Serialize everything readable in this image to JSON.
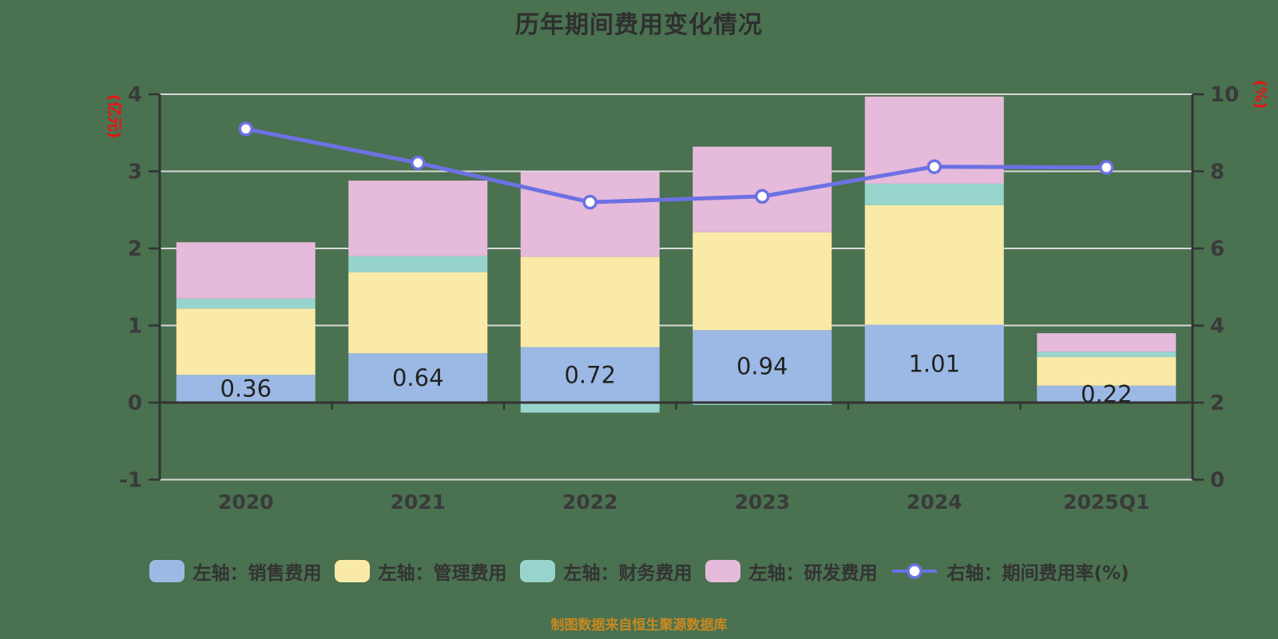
{
  "title": "历年期间费用变化情况",
  "source_note": "制图数据来自恒生聚源数据库",
  "colors": {
    "background": "#4a7150",
    "title_text": "#2f2f2f",
    "axis_line": "#333333",
    "grid_line": "#d9d9d9",
    "tick_text": "#3a3a3a",
    "bar_label_text": "#222222",
    "axis_name_red": "#ee1111",
    "source_text": "#c9881f",
    "legend_text": "#333333"
  },
  "chart_data": {
    "type": "bar",
    "subtype": "stacked-bars-with-line-overlay",
    "categories": [
      "2020",
      "2021",
      "2022",
      "2023",
      "2024",
      "2025Q1"
    ],
    "bar_series": [
      {
        "name": "左轴：销售费用",
        "color": "#9cb9e5",
        "values": [
          0.36,
          0.64,
          0.72,
          0.94,
          1.01,
          0.22
        ]
      },
      {
        "name": "左轴：管理费用",
        "color": "#f9eaa7",
        "values": [
          0.86,
          1.05,
          1.17,
          1.27,
          1.55,
          0.37
        ]
      },
      {
        "name": "左轴：财务费用",
        "color": "#97d5cc",
        "values": [
          0.13,
          0.21,
          -0.13,
          -0.03,
          0.28,
          0.07
        ]
      },
      {
        "name": "左轴：研发费用",
        "color": "#e5bada",
        "values": [
          0.73,
          0.98,
          1.1,
          1.11,
          1.13,
          0.24
        ]
      }
    ],
    "line_series": {
      "name": "右轴：期间费用率(%)",
      "color": "#6c71e3",
      "values": [
        9.1,
        8.22,
        7.2,
        7.35,
        8.12,
        8.1
      ]
    },
    "bar_labels": [
      "0.36",
      "0.64",
      "0.72",
      "0.94",
      "1.01",
      "0.22"
    ],
    "left_axis": {
      "name": "(亿元)",
      "min": -1,
      "max": 4,
      "ticks": [
        4,
        3,
        2,
        1,
        0,
        -1
      ]
    },
    "right_axis": {
      "name": "(%)",
      "min": 0,
      "max": 10,
      "ticks": [
        10,
        8,
        6,
        4,
        2,
        0
      ]
    },
    "grid": true,
    "legend_position": "bottom"
  }
}
